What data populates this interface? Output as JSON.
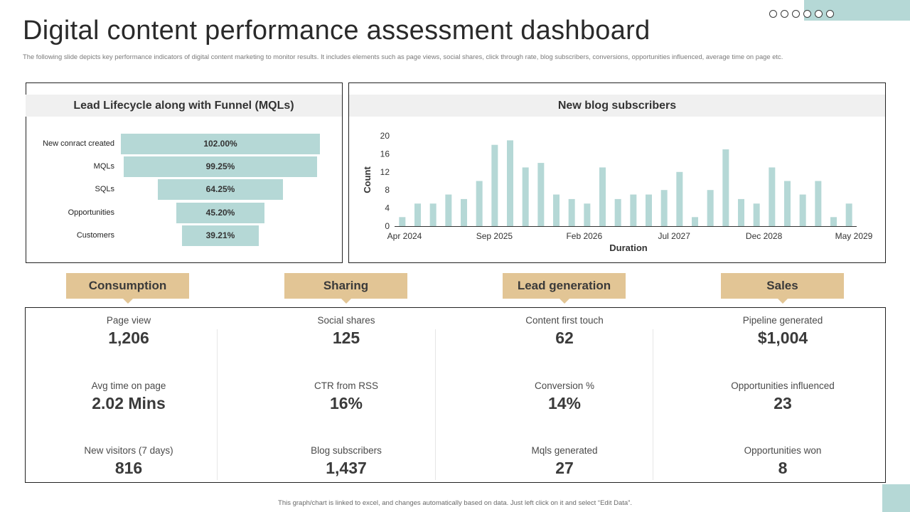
{
  "title": "Digital content performance assessment dashboard",
  "subtitle": "The following slide depicts key performance indicators of digital content marketing to monitor results. It includes elements such as page views, social shares, click through rate, blog subscribers, conversions, opportunities influenced, average time on page etc.",
  "funnel": {
    "heading": "Lead Lifecycle along with Funnel (MQLs)"
  },
  "blog": {
    "heading": "New blog subscribers"
  },
  "chart_data": [
    {
      "type": "bar",
      "orientation": "horizontal-funnel",
      "title": "Lead Lifecycle along with Funnel (MQLs)",
      "categories": [
        "New conract created",
        "MQLs",
        "SQLs",
        "Opportunities",
        "Customers"
      ],
      "values": [
        102.0,
        99.25,
        64.25,
        45.2,
        39.21
      ],
      "value_labels": [
        "102.00%",
        "99.25%",
        "64.25%",
        "45.20%",
        "39.21%"
      ],
      "color": "#b5d8d6"
    },
    {
      "type": "bar",
      "title": "New blog subscribers",
      "xlabel": "Duration",
      "ylabel": "Count",
      "ylim": [
        0,
        20
      ],
      "yticks": [
        "0",
        "4",
        "8",
        "12",
        "16",
        "20"
      ],
      "xticks": [
        "Apr 2024",
        "Sep 2025",
        "Feb 2026",
        "Jul 2027",
        "Dec 2028",
        "May 2029"
      ],
      "values": [
        2,
        5,
        5,
        7,
        6,
        10,
        18,
        19,
        13,
        14,
        7,
        6,
        5,
        13,
        6,
        7,
        7,
        8,
        12,
        2,
        8,
        17,
        6,
        5,
        13,
        10,
        7,
        10,
        2,
        5
      ],
      "grid": false,
      "color": "#b5d8d6"
    }
  ],
  "categories": [
    {
      "tab": "Consumption",
      "kpis": [
        {
          "label": "Page view",
          "value": "1,206"
        },
        {
          "label": "Avg time on page",
          "value": "2.02 Mins"
        },
        {
          "label": "New visitors (7 days)",
          "value": "816"
        }
      ]
    },
    {
      "tab": "Sharing",
      "kpis": [
        {
          "label": "Social shares",
          "value": "125"
        },
        {
          "label": "CTR from RSS",
          "value": "16%"
        },
        {
          "label": "Blog subscribers",
          "value": "1,437"
        }
      ]
    },
    {
      "tab": "Lead generation",
      "kpis": [
        {
          "label": "Content first touch",
          "value": "62"
        },
        {
          "label": "Conversion  %",
          "value": "14%"
        },
        {
          "label": "Mqls generated",
          "value": "27"
        }
      ]
    },
    {
      "tab": "Sales",
      "kpis": [
        {
          "label": "Pipeline generated",
          "value": "$1,004"
        },
        {
          "label": "Opportunities influenced",
          "value": "23"
        },
        {
          "label": "Opportunities won",
          "value": "8"
        }
      ]
    }
  ],
  "footnote": "This graph/chart is linked to excel, and changes automatically based on data. Just left click on it and select “Edit Data”.",
  "colors": {
    "accent": "#b5d8d6",
    "tab": "#e2c595"
  }
}
